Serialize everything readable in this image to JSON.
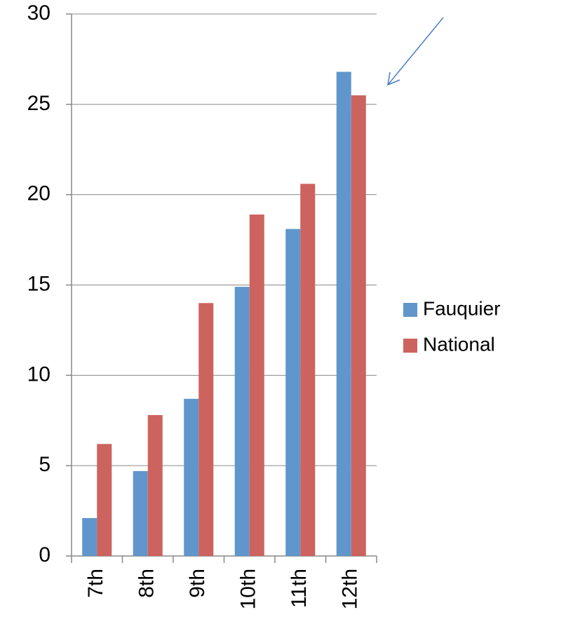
{
  "chart_data": {
    "type": "bar",
    "categories": [
      "7th",
      "8th",
      "9th",
      "10th",
      "11th",
      "12th"
    ],
    "series": [
      {
        "name": "Fauquier",
        "color": "#6096cb",
        "values": [
          2.1,
          4.7,
          8.7,
          14.9,
          18.1,
          26.8
        ]
      },
      {
        "name": "National",
        "color": "#cd635e",
        "values": [
          6.2,
          7.8,
          14.0,
          18.9,
          20.6,
          25.5
        ]
      }
    ],
    "ylim": [
      0,
      30
    ],
    "yticks": [
      0,
      5,
      10,
      15,
      20,
      25,
      30
    ],
    "grid": true,
    "legend": "right"
  }
}
